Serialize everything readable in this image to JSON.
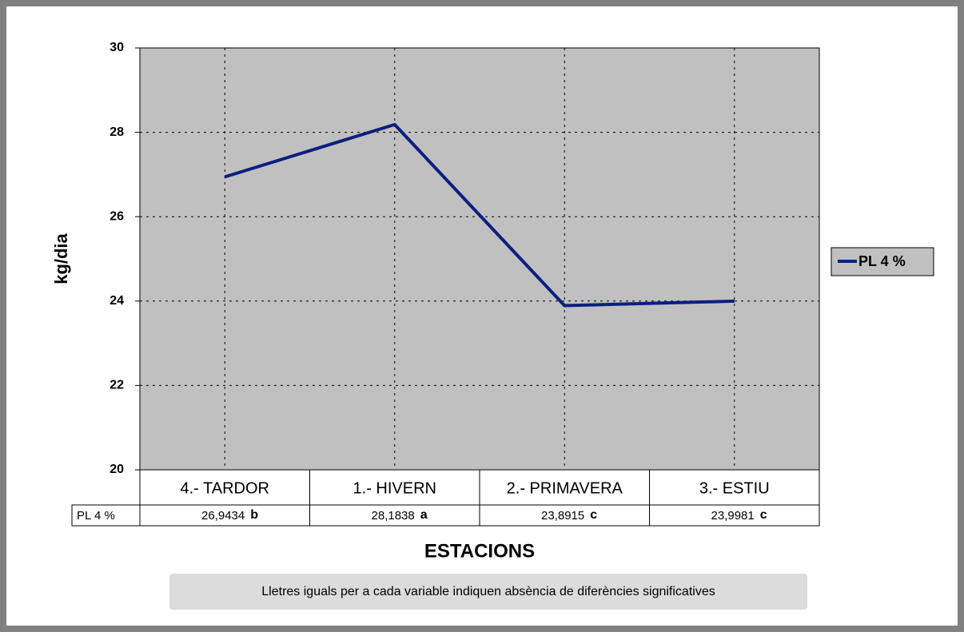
{
  "chart_data": {
    "type": "line",
    "x_label": "ESTACIONS",
    "y_label": "kg/dia",
    "categories": [
      "4.- TARDOR",
      "1.- HIVERN",
      "2.- PRIMAVERA",
      "3.- ESTIU"
    ],
    "series": [
      {
        "name": "PL 4 %",
        "color": "#0b1f80",
        "values": [
          26.9434,
          28.1838,
          23.8915,
          23.9981
        ],
        "value_labels": [
          "26,9434",
          "28,1838",
          "23,8915",
          "23,9981"
        ],
        "significance_letters": [
          "b",
          "a",
          "c",
          "c"
        ]
      }
    ],
    "ylim": [
      20,
      30
    ],
    "yticks": [
      20,
      22,
      24,
      26,
      28,
      30
    ],
    "grid": true,
    "legend": "right",
    "note": "Lletres iguals per a cada variable indiquen absència de diferències significatives"
  }
}
